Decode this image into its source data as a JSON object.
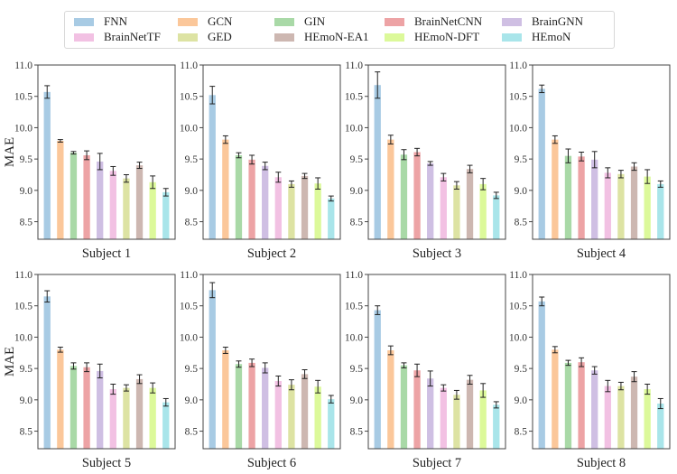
{
  "chart_data": {
    "type": "bar",
    "ylabel": "MAE",
    "ylim": [
      8.22,
      11.0
    ],
    "yticks": [
      "8.5",
      "9.0",
      "9.5",
      "10.0",
      "10.5",
      "11.0"
    ],
    "legend_position": "top-center",
    "grid": false,
    "series_names": [
      "FNN",
      "GCN",
      "GIN",
      "BrainNetCNN",
      "BrainGNN",
      "BrainNetTF",
      "GED",
      "HEmoN-EA1",
      "HEmoN-DFT",
      "HEmoN"
    ],
    "legend_order": [
      "FNN",
      "GCN",
      "GIN",
      "BrainNetCNN",
      "BrainGNN",
      "BrainNetTF",
      "GED",
      "HEmoN-EA1",
      "HEmoN-DFT",
      "HEmoN"
    ],
    "colors": [
      "#a8cbe4",
      "#fbc79a",
      "#a9d9a7",
      "#eda3a5",
      "#cfbfe3",
      "#f2c1e3",
      "#dde3a3",
      "#cdb7b1",
      "#dcf99a",
      "#a9e5ea"
    ],
    "panels": [
      {
        "title": "Subject 1",
        "values": [
          10.57,
          9.79,
          9.6,
          9.56,
          9.46,
          9.31,
          9.19,
          9.4,
          9.13,
          8.97
        ],
        "errors": [
          0.1,
          0.02,
          0.02,
          0.07,
          0.13,
          0.07,
          0.06,
          0.05,
          0.1,
          0.06
        ]
      },
      {
        "title": "Subject 2",
        "values": [
          10.52,
          9.81,
          9.56,
          9.49,
          9.39,
          9.21,
          9.1,
          9.23,
          9.11,
          8.87
        ],
        "errors": [
          0.14,
          0.06,
          0.04,
          0.07,
          0.06,
          0.08,
          0.05,
          0.04,
          0.09,
          0.04
        ]
      },
      {
        "title": "Subject 3",
        "values": [
          10.68,
          9.81,
          9.57,
          9.61,
          9.43,
          9.21,
          9.08,
          9.34,
          9.1,
          8.92
        ],
        "errors": [
          0.21,
          0.07,
          0.08,
          0.06,
          0.03,
          0.06,
          0.06,
          0.06,
          0.09,
          0.05
        ]
      },
      {
        "title": "Subject 4",
        "values": [
          10.62,
          9.81,
          9.55,
          9.54,
          9.49,
          9.28,
          9.26,
          9.38,
          9.22,
          9.1
        ],
        "errors": [
          0.06,
          0.06,
          0.11,
          0.07,
          0.13,
          0.08,
          0.06,
          0.06,
          0.11,
          0.05
        ]
      },
      {
        "title": "Subject 5",
        "values": [
          10.65,
          9.8,
          9.54,
          9.52,
          9.46,
          9.17,
          9.19,
          9.33,
          9.19,
          8.96
        ],
        "errors": [
          0.09,
          0.04,
          0.05,
          0.07,
          0.11,
          0.08,
          0.05,
          0.07,
          0.08,
          0.06
        ]
      },
      {
        "title": "Subject 6",
        "values": [
          10.75,
          9.79,
          9.57,
          9.59,
          9.51,
          9.3,
          9.24,
          9.41,
          9.21,
          9.01
        ],
        "errors": [
          0.12,
          0.05,
          0.05,
          0.06,
          0.08,
          0.08,
          0.08,
          0.07,
          0.1,
          0.06
        ]
      },
      {
        "title": "Subject 7",
        "values": [
          10.43,
          9.79,
          9.55,
          9.47,
          9.34,
          9.19,
          9.08,
          9.32,
          9.15,
          8.92
        ],
        "errors": [
          0.07,
          0.07,
          0.04,
          0.1,
          0.12,
          0.05,
          0.07,
          0.07,
          0.11,
          0.05
        ]
      },
      {
        "title": "Subject 8",
        "values": [
          10.57,
          9.8,
          9.59,
          9.6,
          9.47,
          9.22,
          9.22,
          9.37,
          9.17,
          8.94
        ],
        "errors": [
          0.07,
          0.05,
          0.04,
          0.07,
          0.06,
          0.09,
          0.06,
          0.08,
          0.08,
          0.08
        ]
      }
    ]
  }
}
